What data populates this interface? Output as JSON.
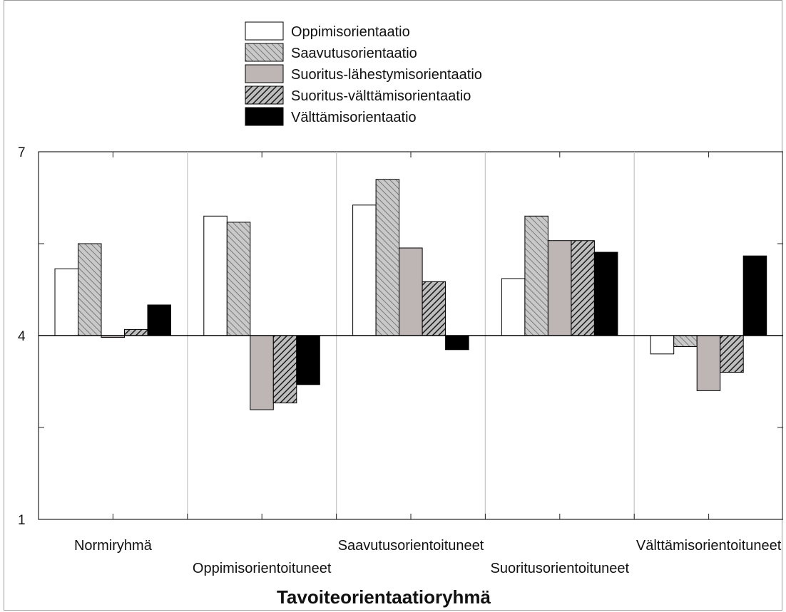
{
  "chart_data": {
    "type": "bar",
    "xlabel": "Tavoiteorientaatioryhmä",
    "ylabel": "",
    "ylim": [
      1,
      7
    ],
    "yticks": [
      "1",
      "4",
      "7"
    ],
    "baseline": 4,
    "grid": false,
    "legend_position": "top-center",
    "categories": [
      "Normiryhmä",
      "Oppimisorientoituneet",
      "Saavutusorientoituneet",
      "Suoritusorientoituneet",
      "Välttämisorientoituneet"
    ],
    "series": [
      {
        "name": "Oppimisorientaatio",
        "pattern": "white",
        "values": [
          5.09,
          5.95,
          6.13,
          4.93,
          3.7
        ]
      },
      {
        "name": "Saavutusorientaatio",
        "pattern": "light-hatch",
        "values": [
          5.5,
          5.85,
          6.55,
          5.95,
          3.82
        ]
      },
      {
        "name": "Suoritus-lähestymisorientaatio",
        "pattern": "gray",
        "values": [
          3.97,
          2.79,
          5.43,
          5.55,
          3.1
        ]
      },
      {
        "name": "Suoritus-välttämisorientaatio",
        "pattern": "dark-hatch",
        "values": [
          4.1,
          2.9,
          4.88,
          5.55,
          3.4
        ]
      },
      {
        "name": "Välttämisorientaatio",
        "pattern": "black",
        "values": [
          4.5,
          3.2,
          3.77,
          5.36,
          5.3
        ]
      }
    ]
  }
}
